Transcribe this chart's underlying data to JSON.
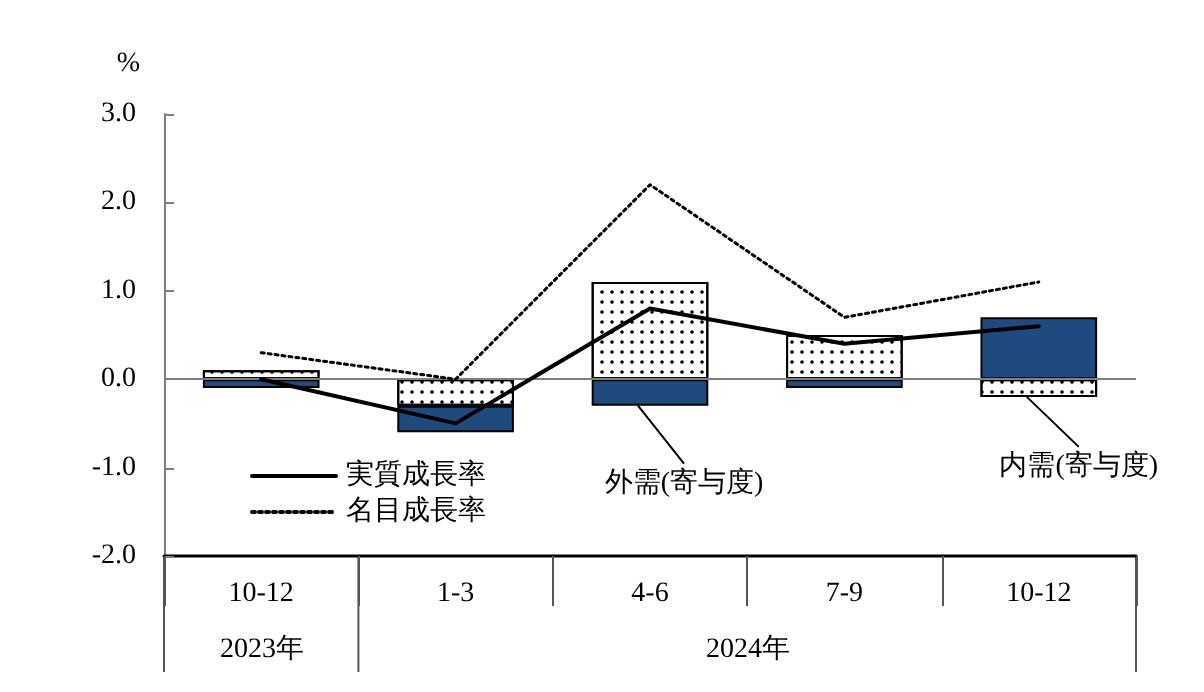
{
  "chart_data": {
    "type": "bar",
    "stacked": true,
    "ylabel": "%",
    "categories": [
      "10-12",
      "1-3",
      "4-6",
      "7-9",
      "10-12"
    ],
    "series": [
      {
        "color": "#ffffff",
        "values": [
          0.1,
          -0.3,
          1.1,
          0.5,
          -0.2
        ]
      },
      {
        "color": "#1f4a7e",
        "values": [
          -0.1,
          -0.3,
          -0.3,
          -0.1,
          0.7
        ]
      },
      {
        "type": "line",
        "name": "実質成長率",
        "color": "#000000",
        "line_style": "solid",
        "values": [
          0.0,
          -0.5,
          0.8,
          0.4,
          0.6
        ]
      },
      {
        "type": "line",
        "name": "名目成長率",
        "color": "#000000",
        "line_style": "dotted",
        "values": [
          0.3,
          0.0,
          2.2,
          0.7,
          1.1
        ]
      }
    ],
    "ylim": [
      -2,
      3
    ],
    "yticks": [
      {
        "value": -2,
        "label": "-2.0"
      },
      {
        "value": -1,
        "label": "-1.0"
      },
      {
        "value": 0,
        "label": "0.0"
      },
      {
        "value": 1,
        "label": "1.0"
      },
      {
        "value": 2,
        "label": "2.0"
      },
      {
        "value": 3,
        "label": "3.0"
      }
    ],
    "ref_lines": [
      {
        "axis": "y",
        "value": 0,
        "color": "#808080"
      }
    ],
    "grid": false,
    "legend": "bottom left",
    "marker": "none",
    "annotations": [
      {
        "text": "外需(寄与度)",
        "x": "4-6",
        "y": -0.3
      },
      {
        "text": "内需(寄与度)",
        "y": -0.2
      },
      "2023年",
      "2024年"
    ]
  }
}
